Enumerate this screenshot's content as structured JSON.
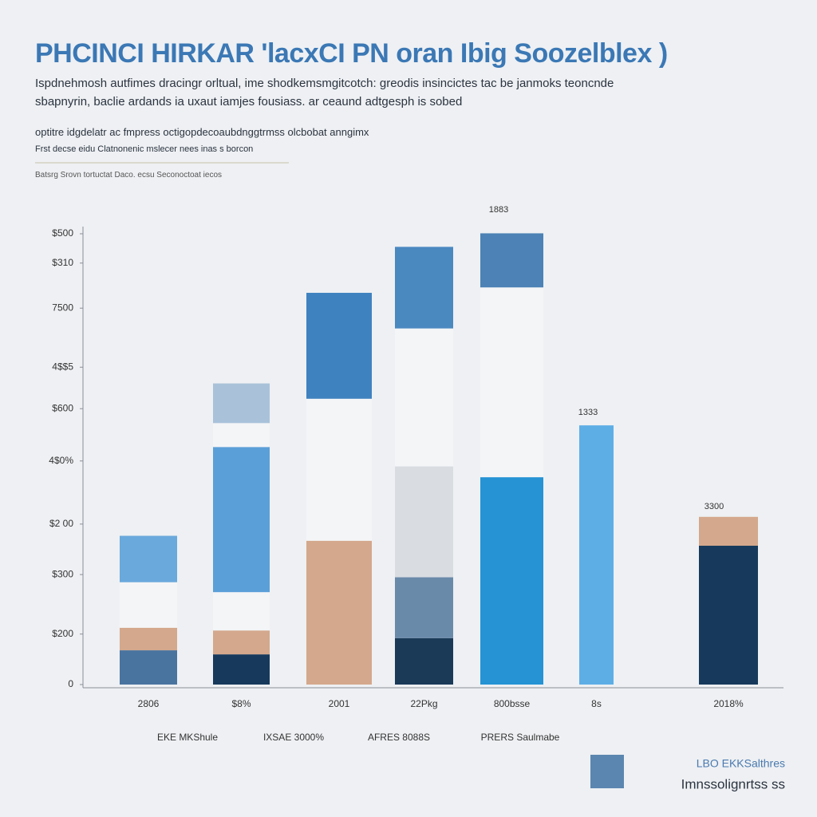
{
  "chart_data": {
    "type": "stacked_bar",
    "title": "PHCINCI HIRKAR 'lacxCI PN oran Ibig Soozelblex )",
    "subtitle": [
      "Ispdnehmosh autfimes dracingr orltual, ime shodkemsmgitcotch: greodis insincictes tac be janmoks teoncnde",
      "sbapnyrin, baclie ardands ia uxaut iamjes fousiass. ar ceaund adtgesph is sobed"
    ],
    "notes": [
      "optitre idgdelatr ac fmpress octigopdecoaubdnggtrmss olcbobat anngimx",
      "Frst decse eidu Clatnonenic mslecer nees inas s borcon"
    ],
    "source": "Batsrg Srovn tortuctat Daco. ecsu Seconoctoat iecos",
    "categories": [
      "2806",
      "$8%",
      "2001",
      "22Pkg",
      "800bsse",
      "8s",
      "2018%"
    ],
    "group_labels": [
      "EKE MKShule",
      "IXSAE 3000%",
      "AFRES 8088S",
      "PRERS Saulmabe"
    ],
    "annotations": [
      "1883",
      "1333",
      "3300"
    ],
    "footer": [
      "LBO EKKSalthres",
      "Imnssolignrtss ss"
    ],
    "ylim": [
      0,
      100
    ],
    "yticks": [
      0,
      {
        "value": 11.2,
        "label": "$200"
      },
      {
        "value": 24.4,
        "label": "$300"
      },
      {
        "value": 35.6,
        "label": "$2 00"
      },
      {
        "value": 49.6,
        "label": "4$0%"
      },
      {
        "value": 61.2,
        "label": "$600"
      },
      {
        "value": 70.4,
        "label": "4$$5"
      },
      {
        "value": 83.5,
        "label": "7500"
      },
      {
        "value": 93.5,
        "label": "$310"
      },
      {
        "value": 100,
        "label": "$500"
      }
    ],
    "segments": [
      [
        {
          "value": 7.6,
          "color": "#4a74a0"
        },
        {
          "value": 5.0,
          "color": "#d4a88c"
        },
        {
          "value": 10.1,
          "color": "#f4f5f7"
        },
        {
          "value": 10.3,
          "color": "#6aa9dc"
        }
      ],
      [
        {
          "value": 6.7,
          "color": "#173a5c"
        },
        {
          "value": 5.3,
          "color": "#d4a88c"
        },
        {
          "value": 8.5,
          "color": "#f4f5f7"
        },
        {
          "value": 32.2,
          "color": "#5b9fd8"
        },
        {
          "value": 5.3,
          "color": "#f4f5f7"
        },
        {
          "value": 8.8,
          "color": "#a9c2da"
        }
      ],
      [
        {
          "value": 31.9,
          "color": "#d4a88c"
        },
        {
          "value": 31.5,
          "color": "#f4f5f7"
        },
        {
          "value": 23.5,
          "color": "#3f82c0"
        }
      ],
      [
        {
          "value": 10.3,
          "color": "#1a3a58"
        },
        {
          "value": 13.5,
          "color": "#6a8aaa"
        },
        {
          "value": 24.6,
          "color": "#d9dde2"
        },
        {
          "value": 30.6,
          "color": "#f4f5f7"
        },
        {
          "value": 18.1,
          "color": "#4a88c0"
        }
      ],
      [
        {
          "value": 46.0,
          "color": "#2593d4"
        },
        {
          "value": 42.1,
          "color": "#f4f5f7"
        },
        {
          "value": 12.0,
          "color": "#4c82b5"
        }
      ],
      [
        {
          "value": 57.5,
          "color": "#5eaee6"
        }
      ],
      [
        {
          "value": 30.8,
          "color": "#173a5c"
        },
        {
          "value": 6.4,
          "color": "#d4a88c"
        }
      ]
    ]
  }
}
